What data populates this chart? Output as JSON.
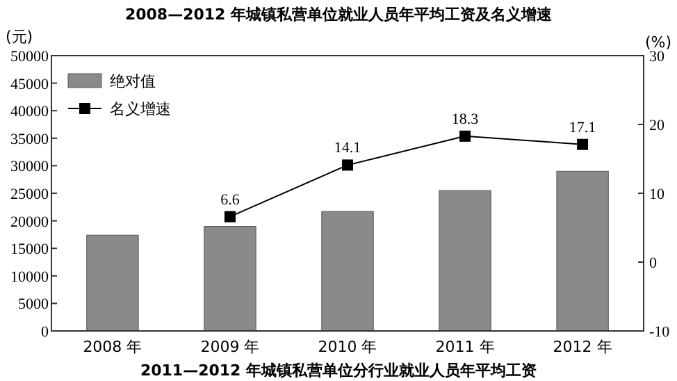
{
  "chart_data": {
    "type": "bar",
    "title": "2008—2012 年城镇私营单位就业人员年平均工资及名义增速",
    "ylabel": "(元)",
    "y2label": "(%)",
    "annotations": [
      "2011—2012 年城镇私营单位分行业就业人员年平均工资"
    ],
    "categories": [
      "2008 年",
      "2009 年",
      "2010 年",
      "2011 年",
      "2012 年"
    ],
    "series": [
      {
        "name": "绝对值",
        "color": "#8a8a8a",
        "values": [
          17400,
          19000,
          21700,
          25500,
          29000
        ]
      },
      {
        "name": "名义增速",
        "type": "line",
        "axis": "y2",
        "color": "#000000",
        "marker": "square",
        "values": [
          null,
          6.6,
          14.1,
          18.3,
          17.1
        ],
        "data_labels": true
      }
    ],
    "ylim": [
      0,
      50000
    ],
    "yticks": [
      0,
      5000,
      10000,
      15000,
      20000,
      25000,
      30000,
      35000,
      40000,
      45000,
      50000
    ],
    "y2lim": [
      -10,
      30
    ],
    "y2ticks": [
      -10,
      0,
      10,
      20,
      30
    ],
    "legend": "top left"
  }
}
